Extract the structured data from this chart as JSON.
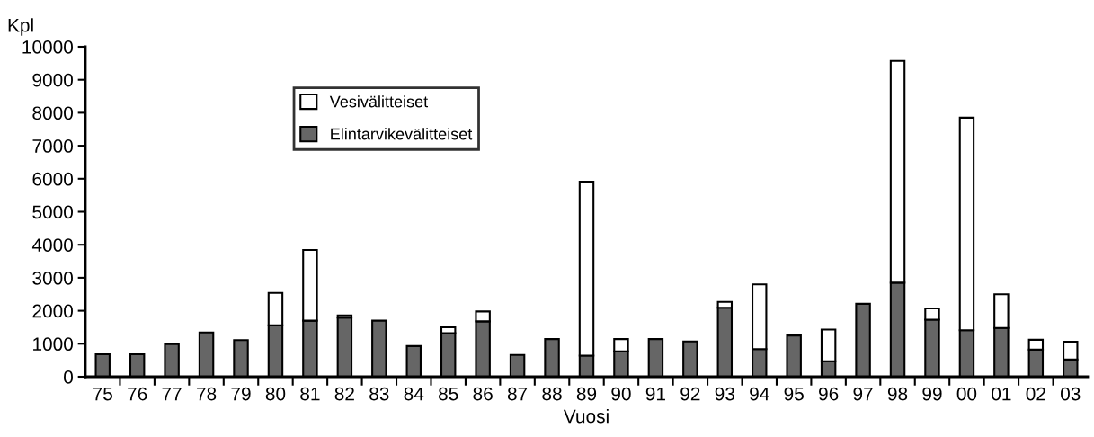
{
  "chart_data": {
    "type": "bar",
    "stacked": true,
    "xlabel": "Vuosi",
    "ylabel": "Kpl",
    "categories": [
      "75",
      "76",
      "77",
      "78",
      "79",
      "80",
      "81",
      "82",
      "83",
      "84",
      "85",
      "86",
      "87",
      "88",
      "89",
      "90",
      "91",
      "92",
      "93",
      "94",
      "95",
      "96",
      "97",
      "98",
      "99",
      "00",
      "01",
      "02",
      "03"
    ],
    "series": [
      {
        "name": "Elintarvikevälitteiset",
        "color": "#666666",
        "values": [
          680,
          680,
          990,
          1340,
          1110,
          1560,
          1700,
          1790,
          1700,
          930,
          1320,
          1680,
          660,
          1140,
          640,
          770,
          1140,
          1070,
          2090,
          840,
          1250,
          470,
          2210,
          2850,
          1730,
          1410,
          1480,
          820,
          520
        ]
      },
      {
        "name": "Vesivälitteiset",
        "color": "#ffffff",
        "values": [
          null,
          null,
          null,
          null,
          null,
          980,
          2140,
          70,
          null,
          null,
          180,
          300,
          null,
          null,
          5270,
          370,
          null,
          null,
          180,
          1960,
          null,
          960,
          null,
          6720,
          340,
          6440,
          1020,
          300,
          540
        ]
      }
    ],
    "ylim": [
      0,
      10000
    ],
    "yticks": [
      0,
      1000,
      2000,
      3000,
      4000,
      5000,
      6000,
      7000,
      8000,
      9000,
      10000
    ],
    "grid": false,
    "legend": "top left"
  }
}
